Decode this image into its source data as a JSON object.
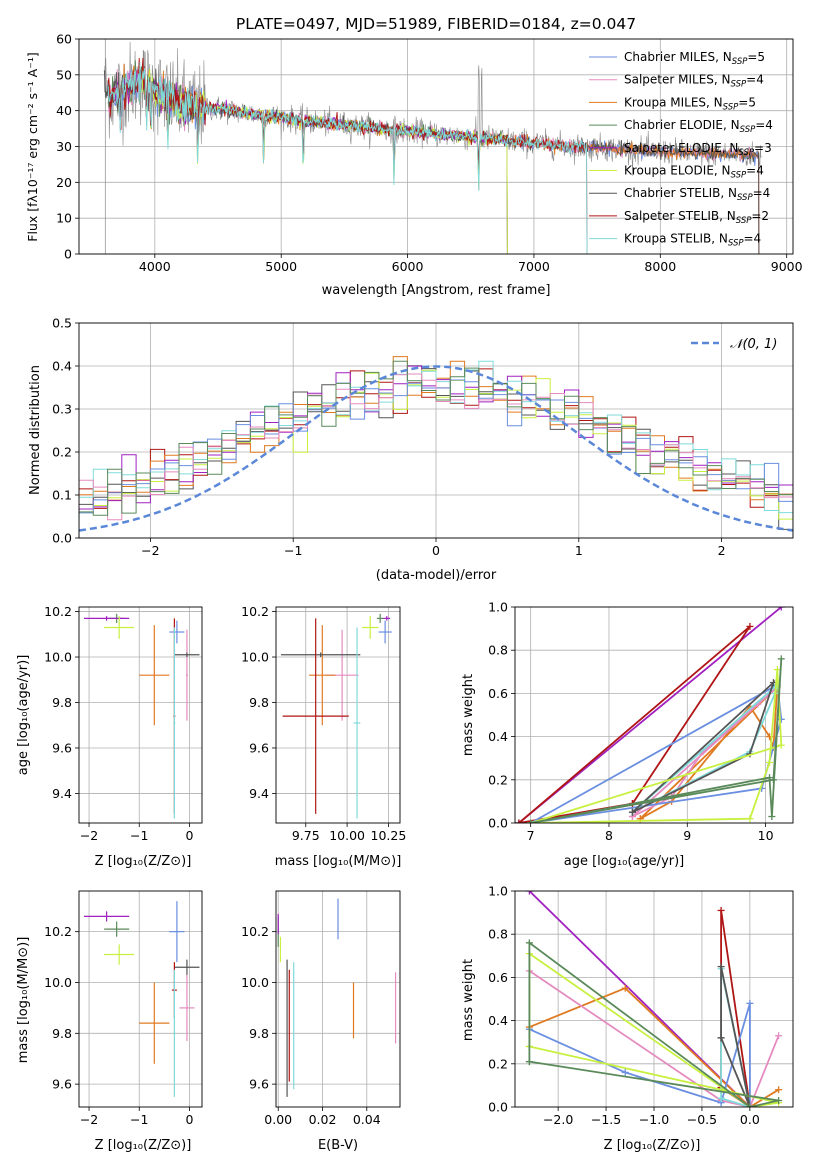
{
  "figure_title": "PLATE=0497, MJD=51989, FIBERID=0184, z=0.047",
  "labels": {
    "spec_x": "wavelength [Angstrom, rest frame]",
    "spec_y": "Flux [fλ10⁻¹⁷ erg cm⁻² s⁻¹ A⁻¹]",
    "resid_x": "(data-model)/error",
    "resid_y": "Normed distribution",
    "resid_legend": "𝒩(0, 1)",
    "age_y": "age  [log₁₀(age/yr)]",
    "mass_y": "mass [log₁₀(M/M⊙)]",
    "z_x": "Z [log₁₀(Z/Z⊙)]",
    "mass_x": "mass [log₁₀(M/M⊙)]",
    "ebv_x": "E(B-V)",
    "mw_y": "mass weight",
    "mw_age_x": "age  [log₁₀(age/yr)]",
    "mw_z_x": "Z [log₁₀(Z/Z⊙)]"
  },
  "colors": {
    "chabrier_miles": "#6a8ee0",
    "salpeter_miles": "#e58bbf",
    "kroupa_miles": "#e07a20",
    "chabrier_elodie": "#5a8a5a",
    "salpeter_elodie": "#a020c0",
    "kroupa_elodie": "#c8f040",
    "chabrier_stelib": "#555555",
    "salpeter_stelib": "#b01515",
    "kroupa_stelib": "#80dada",
    "gaussian": "#5b87d9"
  },
  "legend": [
    {
      "key": "chabrier_miles",
      "label": "Chabrier MILES, N_SSP=5"
    },
    {
      "key": "salpeter_miles",
      "label": "Salpeter MILES, N_SSP=4"
    },
    {
      "key": "kroupa_miles",
      "label": "Kroupa MILES, N_SSP=5"
    },
    {
      "key": "chabrier_elodie",
      "label": "Chabrier ELODIE, N_SSP=4"
    },
    {
      "key": "salpeter_elodie",
      "label": "Salpeter ELODIE, N_SSP=3"
    },
    {
      "key": "kroupa_elodie",
      "label": "Kroupa ELODIE, N_SSP=4"
    },
    {
      "key": "chabrier_stelib",
      "label": "Chabrier STELIB, N_SSP=4"
    },
    {
      "key": "salpeter_stelib",
      "label": "Salpeter STELIB, N_SSP=2"
    },
    {
      "key": "kroupa_stelib",
      "label": "Kroupa STELIB, N_SSP=4"
    }
  ],
  "chart_data": [
    {
      "id": "spectrum",
      "type": "line",
      "xlim": [
        3400,
        9050
      ],
      "ylim": [
        0,
        60
      ],
      "xticks": [
        4000,
        5000,
        6000,
        7000,
        8000,
        9000
      ],
      "yticks": [
        0,
        10,
        20,
        30,
        40,
        50,
        60
      ],
      "continuum": {
        "x": [
          3600,
          3650,
          3700,
          3800,
          3900,
          4000,
          4100,
          4200,
          4300,
          4400,
          4600,
          4800,
          5000,
          5200,
          5500,
          5800,
          6100,
          6400,
          6700,
          7000,
          7300,
          7600,
          8000,
          8400,
          8800
        ],
        "y": [
          47,
          44,
          45,
          47,
          48,
          46,
          44,
          42,
          41,
          41,
          40,
          39,
          38,
          37,
          36,
          35,
          34,
          33,
          32,
          31,
          30,
          29.5,
          28.5,
          28,
          27.5
        ]
      },
      "model_ranges": {
        "chabrier_miles": [
          3630,
          8780
        ],
        "salpeter_miles": [
          3630,
          8780
        ],
        "kroupa_miles": [
          3630,
          8780
        ],
        "chabrier_elodie": [
          3630,
          6790
        ],
        "salpeter_elodie": [
          3630,
          6790
        ],
        "kroupa_elodie": [
          3900,
          6790
        ],
        "chabrier_stelib": [
          3600,
          8780
        ],
        "salpeter_stelib": [
          3630,
          7420
        ],
        "kroupa_stelib": [
          3630,
          7420
        ]
      }
    },
    {
      "id": "residual_hist",
      "type": "step",
      "xlim": [
        -2.5,
        2.5
      ],
      "ylim": [
        0,
        0.5
      ],
      "xticks": [
        -2,
        -1,
        0,
        1,
        2
      ],
      "yticks": [
        0.0,
        0.1,
        0.2,
        0.3,
        0.4,
        0.5
      ],
      "bin_width": 0.1,
      "gaussian": {
        "mu": 0,
        "sigma": 1
      }
    },
    {
      "id": "age_vs_Z",
      "type": "errorbar",
      "xlim": [
        -2.2,
        0.25
      ],
      "ylim": [
        9.27,
        10.22
      ],
      "xticks": [
        -2,
        -1,
        0
      ],
      "yticks": [
        9.4,
        9.6,
        9.8,
        10.0,
        10.2
      ],
      "points": [
        {
          "s": "chabrier_miles",
          "x": -0.25,
          "xe": 0.15,
          "y": 10.11,
          "ye": 0.05
        },
        {
          "s": "salpeter_miles",
          "x": -0.05,
          "xe": 0.02,
          "y": 9.92,
          "ye": 0.2
        },
        {
          "s": "kroupa_miles",
          "x": -0.7,
          "xe": 0.3,
          "y": 9.92,
          "ye": 0.22
        },
        {
          "s": "chabrier_elodie",
          "x": -1.45,
          "xe": 0.15,
          "y": 10.17,
          "ye": 0.02
        },
        {
          "s": "salpeter_elodie",
          "x": -1.65,
          "xe": 0.45,
          "y": 10.17,
          "ye": 0.01
        },
        {
          "s": "kroupa_elodie",
          "x": -1.4,
          "xe": 0.3,
          "y": 10.13,
          "ye": 0.05
        },
        {
          "s": "chabrier_stelib",
          "x": -0.05,
          "xe": 0.25,
          "y": 10.01,
          "ye": 0.01
        },
        {
          "s": "salpeter_stelib",
          "x": -0.3,
          "xe": 0.02,
          "y": 9.74,
          "ye": 0.43
        },
        {
          "s": "kroupa_stelib",
          "x": -0.3,
          "xe": 0.02,
          "y": 9.71,
          "ye": 0.42
        }
      ]
    },
    {
      "id": "age_vs_mass",
      "type": "errorbar",
      "xlim": [
        9.57,
        10.32
      ],
      "ylim": [
        9.27,
        10.22
      ],
      "xticks": [
        9.75,
        10.0,
        10.25
      ],
      "yticks": [
        9.4,
        9.6,
        9.8,
        10.0,
        10.2
      ],
      "points": [
        {
          "s": "chabrier_miles",
          "x": 10.23,
          "xe": 0.04,
          "y": 10.11,
          "ye": 0.05
        },
        {
          "s": "salpeter_miles",
          "x": 9.97,
          "xe": 0.1,
          "y": 9.92,
          "ye": 0.2
        },
        {
          "s": "kroupa_miles",
          "x": 9.85,
          "xe": 0.08,
          "y": 9.92,
          "ye": 0.22
        },
        {
          "s": "chabrier_elodie",
          "x": 10.2,
          "xe": 0.02,
          "y": 10.17,
          "ye": 0.02
        },
        {
          "s": "salpeter_elodie",
          "x": 10.24,
          "xe": 0.02,
          "y": 10.17,
          "ye": 0.01
        },
        {
          "s": "kroupa_elodie",
          "x": 10.14,
          "xe": 0.05,
          "y": 10.13,
          "ye": 0.05
        },
        {
          "s": "chabrier_stelib",
          "x": 9.84,
          "xe": 0.24,
          "y": 10.01,
          "ye": 0.01
        },
        {
          "s": "salpeter_stelib",
          "x": 9.81,
          "xe": 0.2,
          "y": 9.74,
          "ye": 0.43
        },
        {
          "s": "kroupa_stelib",
          "x": 10.06,
          "xe": 0.02,
          "y": 9.71,
          "ye": 0.42
        }
      ]
    },
    {
      "id": "mass_vs_Z",
      "type": "errorbar",
      "xlim": [
        -2.2,
        0.25
      ],
      "ylim": [
        9.51,
        10.36
      ],
      "xticks": [
        -2,
        -1,
        0
      ],
      "yticks": [
        9.6,
        9.8,
        10.0,
        10.2
      ],
      "points": [
        {
          "s": "chabrier_miles",
          "x": -0.25,
          "xe": 0.15,
          "y": 10.2,
          "ye": 0.12
        },
        {
          "s": "salpeter_miles",
          "x": -0.05,
          "xe": 0.15,
          "y": 9.9,
          "ye": 0.13
        },
        {
          "s": "kroupa_miles",
          "x": -0.7,
          "xe": 0.3,
          "y": 9.84,
          "ye": 0.16
        },
        {
          "s": "chabrier_elodie",
          "x": -1.45,
          "xe": 0.25,
          "y": 10.21,
          "ye": 0.03
        },
        {
          "s": "salpeter_elodie",
          "x": -1.65,
          "xe": 0.45,
          "y": 10.26,
          "ye": 0.02
        },
        {
          "s": "kroupa_elodie",
          "x": -1.4,
          "xe": 0.3,
          "y": 10.11,
          "ye": 0.04
        },
        {
          "s": "chabrier_stelib",
          "x": -0.05,
          "xe": 0.25,
          "y": 10.06,
          "ye": 0.03
        },
        {
          "s": "salpeter_stelib",
          "x": -0.3,
          "xe": 0.05,
          "y": 9.97,
          "ye": 0.11
        },
        {
          "s": "kroupa_stelib",
          "x": -0.3,
          "xe": 0.02,
          "y": 9.8,
          "ye": 0.25
        }
      ]
    },
    {
      "id": "mass_vs_ebv",
      "type": "errorbar",
      "xlim": [
        -0.001,
        0.055
      ],
      "ylim": [
        9.51,
        10.36
      ],
      "xticks": [
        0.0,
        0.02,
        0.04
      ],
      "yticks": [
        9.6,
        9.8,
        10.0,
        10.2
      ],
      "points": [
        {
          "s": "chabrier_miles",
          "x": 0.027,
          "xe": 0,
          "y": 10.25,
          "ye": 0.08
        },
        {
          "s": "salpeter_miles",
          "x": 0.053,
          "xe": 0,
          "y": 9.9,
          "ye": 0.14
        },
        {
          "s": "kroupa_miles",
          "x": 0.034,
          "xe": 0,
          "y": 9.89,
          "ye": 0.11
        },
        {
          "s": "chabrier_elodie",
          "x": 0.0,
          "xe": 0,
          "y": 10.2,
          "ye": 0.06
        },
        {
          "s": "salpeter_elodie",
          "x": 0.0,
          "xe": 0,
          "y": 10.23,
          "ye": 0.04
        },
        {
          "s": "kroupa_elodie",
          "x": 0.001,
          "xe": 0,
          "y": 10.13,
          "ye": 0.05
        },
        {
          "s": "chabrier_stelib",
          "x": 0.004,
          "xe": 0,
          "y": 9.82,
          "ye": 0.27
        },
        {
          "s": "salpeter_stelib",
          "x": 0.005,
          "xe": 0,
          "y": 9.83,
          "ye": 0.22
        },
        {
          "s": "kroupa_stelib",
          "x": 0.007,
          "xe": 0,
          "y": 9.83,
          "ye": 0.25
        }
      ]
    },
    {
      "id": "mw_vs_age",
      "type": "line",
      "xlim": [
        6.8,
        10.35
      ],
      "ylim": [
        0,
        1
      ],
      "xticks": [
        7,
        8,
        9,
        10
      ],
      "yticks": [
        0.0,
        0.2,
        0.4,
        0.6,
        0.8,
        1.0
      ],
      "series": [
        {
          "s": "salpeter_elodie",
          "x": [
            6.85,
            10.2
          ],
          "y": [
            0.0,
            1.0
          ]
        },
        {
          "s": "salpeter_stelib",
          "x": [
            8.3,
            9.8,
            6.85,
            8.3
          ],
          "y": [
            0.09,
            0.91,
            0.0,
            0.09
          ]
        },
        {
          "s": "kroupa_miles",
          "x": [
            8.4,
            8.8,
            9.8,
            10.05,
            10.1,
            10.15,
            8.4
          ],
          "y": [
            0.02,
            0.1,
            0.54,
            0.4,
            0.35,
            0.63,
            0.02
          ]
        },
        {
          "s": "salpeter_miles",
          "x": [
            8.3,
            8.8,
            9.2,
            9.9,
            10.12,
            8.3
          ],
          "y": [
            0.03,
            0.12,
            0.33,
            0.55,
            0.62,
            0.03
          ]
        },
        {
          "s": "chabrier_miles",
          "x": [
            7.0,
            9.95,
            10.2,
            10.15,
            7.0
          ],
          "y": [
            0.0,
            0.16,
            0.48,
            0.64,
            0.0
          ]
        },
        {
          "s": "kroupa_stelib",
          "x": [
            8.3,
            9.8,
            10.12,
            10.15,
            8.3
          ],
          "y": [
            0.05,
            0.33,
            0.6,
            0.64,
            0.05
          ]
        },
        {
          "s": "chabrier_stelib",
          "x": [
            8.3,
            9.8,
            10.1,
            8.3
          ],
          "y": [
            0.05,
            0.32,
            0.65,
            0.05
          ]
        },
        {
          "s": "kroupa_elodie",
          "x": [
            7.0,
            9.8,
            10.05,
            10.15,
            10.2,
            7.0
          ],
          "y": [
            0.0,
            0.02,
            0.28,
            0.71,
            0.36,
            0.0
          ]
        },
        {
          "s": "chabrier_elodie",
          "x": [
            7.0,
            10.05,
            10.08,
            10.2,
            10.1,
            7.0
          ],
          "y": [
            0.0,
            0.21,
            0.03,
            0.76,
            0.2,
            0.0
          ]
        }
      ]
    },
    {
      "id": "mw_vs_Z",
      "type": "line",
      "xlim": [
        -2.45,
        0.45
      ],
      "ylim": [
        0,
        1
      ],
      "xticks": [
        -2.0,
        -1.5,
        -1.0,
        -0.5,
        0.0
      ],
      "yticks": [
        0.0,
        0.2,
        0.4,
        0.6,
        0.8,
        1.0
      ],
      "series": [
        {
          "s": "salpeter_elodie",
          "x": [
            -2.3,
            0.0
          ],
          "y": [
            1.0,
            0.0
          ]
        },
        {
          "s": "salpeter_stelib",
          "x": [
            -0.3,
            -0.3,
            0.0,
            -0.3
          ],
          "y": [
            0.09,
            0.91,
            0.0,
            0.09
          ]
        },
        {
          "s": "kroupa_miles",
          "x": [
            -2.3,
            -1.3,
            0.0,
            0.3,
            0.0
          ],
          "y": [
            0.37,
            0.55,
            0.0,
            0.08,
            0.0
          ]
        },
        {
          "s": "salpeter_miles",
          "x": [
            -2.3,
            -0.3,
            0.0,
            0.3,
            0.0
          ],
          "y": [
            0.63,
            0.03,
            0.0,
            0.33,
            0.0
          ]
        },
        {
          "s": "chabrier_miles",
          "x": [
            -2.3,
            -1.3,
            -0.3,
            0.0,
            0.0,
            0.0
          ],
          "y": [
            0.36,
            0.16,
            0.02,
            0.48,
            0.0,
            0.0
          ]
        },
        {
          "s": "kroupa_stelib",
          "x": [
            -0.3,
            -0.3,
            0.0,
            -0.3
          ],
          "y": [
            0.04,
            0.64,
            0.0,
            0.04
          ]
        },
        {
          "s": "chabrier_stelib",
          "x": [
            -0.3,
            -0.3,
            0.0,
            -0.3
          ],
          "y": [
            0.32,
            0.65,
            0.0,
            0.32
          ]
        },
        {
          "s": "kroupa_elodie",
          "x": [
            -2.3,
            -2.3,
            0.0,
            0.3,
            -2.3
          ],
          "y": [
            0.28,
            0.71,
            0.0,
            0.02,
            0.28
          ]
        },
        {
          "s": "chabrier_elodie",
          "x": [
            -2.3,
            -2.3,
            0.0,
            0.3,
            -2.3
          ],
          "y": [
            0.21,
            0.76,
            0.0,
            0.03,
            0.21
          ]
        }
      ]
    }
  ]
}
